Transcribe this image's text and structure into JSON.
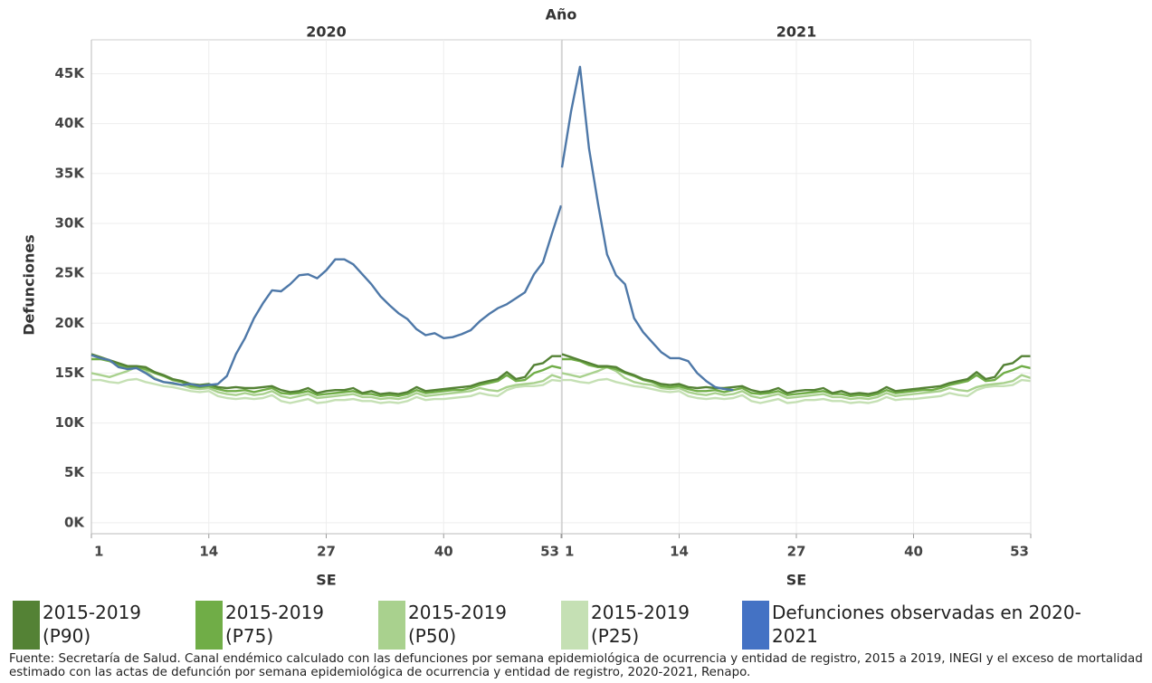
{
  "chart_data": {
    "type": "line",
    "title": "Año",
    "panels": [
      "2020",
      "2021"
    ],
    "x_label": "SE",
    "y_label": "Defunciones",
    "x": [
      1,
      2,
      3,
      4,
      5,
      6,
      7,
      8,
      9,
      10,
      11,
      12,
      13,
      14,
      15,
      16,
      17,
      18,
      19,
      20,
      21,
      22,
      23,
      24,
      25,
      26,
      27,
      28,
      29,
      30,
      31,
      32,
      33,
      34,
      35,
      36,
      37,
      38,
      39,
      40,
      41,
      42,
      43,
      44,
      45,
      46,
      47,
      48,
      49,
      50,
      51,
      52,
      53
    ],
    "xlim": [
      1,
      53
    ],
    "xticks": [
      1,
      14,
      27,
      40,
      53
    ],
    "ylim": [
      -1100,
      48400
    ],
    "yticks": [
      {
        "value": 0,
        "label": "0K"
      },
      {
        "value": 5000,
        "label": "5K"
      },
      {
        "value": 10000,
        "label": "10K"
      },
      {
        "value": 15000,
        "label": "15K"
      },
      {
        "value": 20000,
        "label": "20K"
      },
      {
        "value": 25000,
        "label": "25K"
      },
      {
        "value": 30000,
        "label": "30K"
      },
      {
        "value": 35000,
        "label": "35K"
      },
      {
        "value": 40000,
        "label": "40K"
      },
      {
        "value": 45000,
        "label": "45K"
      }
    ],
    "grid": true,
    "series": [
      {
        "name": "2015-2019 (P25)",
        "color": "#c5e0b4",
        "values": [
          [
            14300,
            14300,
            14100,
            14000,
            14300,
            14400,
            14100,
            13900,
            13700,
            13600,
            13400,
            13200,
            13100,
            13200,
            12700,
            12500,
            12400,
            12500,
            12400,
            12500,
            12800,
            12200,
            12000,
            12200,
            12400,
            12000,
            12100,
            12300,
            12300,
            12400,
            12200,
            12200,
            12000,
            12100,
            12000,
            12200,
            12600,
            12300,
            12400,
            12400,
            12500,
            12600,
            12700,
            13000,
            12800,
            12700,
            13300,
            13600,
            13700,
            13700,
            13800,
            14300,
            14200
          ],
          [
            14300,
            14300,
            14100,
            14000,
            14300,
            14400,
            14100,
            13900,
            13700,
            13600,
            13400,
            13200,
            13100,
            13200,
            12700,
            12500,
            12400,
            12500,
            12400,
            12500,
            12800,
            12200,
            12000,
            12200,
            12400,
            12000,
            12100,
            12300,
            12300,
            12400,
            12200,
            12200,
            12000,
            12100,
            12000,
            12200,
            12600,
            12300,
            12400,
            12400,
            12500,
            12600,
            12700,
            13000,
            12800,
            12700,
            13300,
            13600,
            13700,
            13700,
            13800,
            14300,
            14200
          ]
        ]
      },
      {
        "name": "2015-2019 (P50)",
        "color": "#a9d18e",
        "values": [
          [
            15000,
            14800,
            14600,
            14900,
            15200,
            15600,
            15200,
            14500,
            14100,
            13900,
            13800,
            13500,
            13400,
            13500,
            13100,
            12900,
            12800,
            13000,
            12800,
            12900,
            13200,
            12700,
            12500,
            12700,
            12900,
            12500,
            12600,
            12700,
            12800,
            12900,
            12600,
            12600,
            12400,
            12500,
            12400,
            12600,
            13000,
            12700,
            12800,
            12900,
            13000,
            13100,
            13200,
            13500,
            13300,
            13200,
            13600,
            13800,
            13900,
            14000,
            14200,
            14800,
            14500
          ],
          [
            15000,
            14800,
            14600,
            14900,
            15200,
            15600,
            15200,
            14500,
            14100,
            13900,
            13800,
            13500,
            13400,
            13500,
            13100,
            12900,
            12800,
            13000,
            12800,
            12900,
            13200,
            12700,
            12500,
            12700,
            12900,
            12500,
            12600,
            12700,
            12800,
            12900,
            12600,
            12600,
            12400,
            12500,
            12400,
            12600,
            13000,
            12700,
            12800,
            12900,
            13000,
            13100,
            13200,
            13500,
            13300,
            13200,
            13600,
            13800,
            13900,
            14000,
            14200,
            14800,
            14500
          ]
        ]
      },
      {
        "name": "2015-2019 (P75)",
        "color": "#70ad47",
        "values": [
          [
            16400,
            16400,
            16200,
            15800,
            15600,
            15600,
            15400,
            15000,
            14700,
            14300,
            14100,
            13700,
            13600,
            13700,
            13400,
            13200,
            13200,
            13300,
            13100,
            13300,
            13500,
            13000,
            12900,
            13000,
            13200,
            12800,
            12900,
            13000,
            13100,
            13200,
            12900,
            12900,
            12700,
            12800,
            12700,
            12900,
            13300,
            13000,
            13100,
            13200,
            13300,
            13300,
            13500,
            13800,
            14000,
            14200,
            14800,
            14200,
            14300,
            15000,
            15300,
            15700,
            15500
          ],
          [
            16400,
            16400,
            16200,
            15800,
            15600,
            15600,
            15400,
            15000,
            14700,
            14300,
            14100,
            13700,
            13600,
            13700,
            13400,
            13200,
            13200,
            13300,
            13100,
            13300,
            13500,
            13000,
            12900,
            13000,
            13200,
            12800,
            12900,
            13000,
            13100,
            13200,
            12900,
            12900,
            12700,
            12800,
            12700,
            12900,
            13300,
            13000,
            13100,
            13200,
            13300,
            13300,
            13500,
            13800,
            14000,
            14200,
            14800,
            14200,
            14300,
            15000,
            15300,
            15700,
            15500
          ]
        ]
      },
      {
        "name": "2015-2019 (P90)",
        "color": "#548235",
        "values": [
          [
            16900,
            16600,
            16300,
            16000,
            15700,
            15700,
            15600,
            15100,
            14800,
            14400,
            14200,
            13900,
            13800,
            13900,
            13600,
            13500,
            13600,
            13500,
            13500,
            13600,
            13700,
            13300,
            13100,
            13200,
            13500,
            13000,
            13200,
            13300,
            13300,
            13500,
            13000,
            13200,
            12900,
            13000,
            12900,
            13100,
            13600,
            13200,
            13300,
            13400,
            13500,
            13600,
            13700,
            14000,
            14200,
            14400,
            15100,
            14400,
            14600,
            15800,
            16000,
            16700,
            16700
          ],
          [
            16900,
            16600,
            16300,
            16000,
            15700,
            15700,
            15600,
            15100,
            14800,
            14400,
            14200,
            13900,
            13800,
            13900,
            13600,
            13500,
            13600,
            13500,
            13500,
            13600,
            13700,
            13300,
            13100,
            13200,
            13500,
            13000,
            13200,
            13300,
            13300,
            13500,
            13000,
            13200,
            12900,
            13000,
            12900,
            13100,
            13600,
            13200,
            13300,
            13400,
            13500,
            13600,
            13700,
            14000,
            14200,
            14400,
            15100,
            14400,
            14600,
            15800,
            16000,
            16700,
            16700
          ]
        ]
      },
      {
        "name": "Defunciones observadas en 2020-2021",
        "color": "#4e78a8",
        "legend_color": "#4472c4",
        "values": [
          [
            16800,
            16500,
            16300,
            15600,
            15400,
            15500,
            15000,
            14400,
            14100,
            14000,
            13800,
            13900,
            13700,
            13800,
            13900,
            14700,
            16900,
            18500,
            20500,
            22000,
            23300,
            23200,
            23900,
            24800,
            24900,
            24500,
            25300,
            26400,
            26400,
            25900,
            24900,
            23900,
            22700,
            21800,
            21000,
            20400,
            19400,
            18800,
            19000,
            18500,
            18600,
            18900,
            19300,
            20200,
            20900,
            21500,
            21900,
            22500,
            23100,
            24900,
            26100,
            29000,
            31800
          ],
          [
            35600,
            41200,
            45700,
            37500,
            32000,
            26900,
            24800,
            23900,
            20500,
            19100,
            18100,
            17100,
            16500,
            16500,
            16200,
            15000,
            14200,
            13600,
            13400,
            13300,
            null,
            null,
            null,
            null,
            null,
            null,
            null,
            null,
            null,
            null,
            null,
            null,
            null,
            null,
            null,
            null,
            null,
            null,
            null,
            null,
            null,
            null,
            null,
            null,
            null,
            null,
            null,
            null,
            null,
            null,
            null,
            null,
            null
          ]
        ]
      }
    ],
    "source": "Fuente: Secretaría de Salud. Canal endémico calculado con las defunciones por semana epidemiológica de ocurrencia y entidad de registro, 2015 a 2019, INEGI y el exceso de mortalidad estimado con las actas de defunción por semana epidemiológica de ocurrencia y entidad de registro, 2020-2021, Renapo."
  }
}
